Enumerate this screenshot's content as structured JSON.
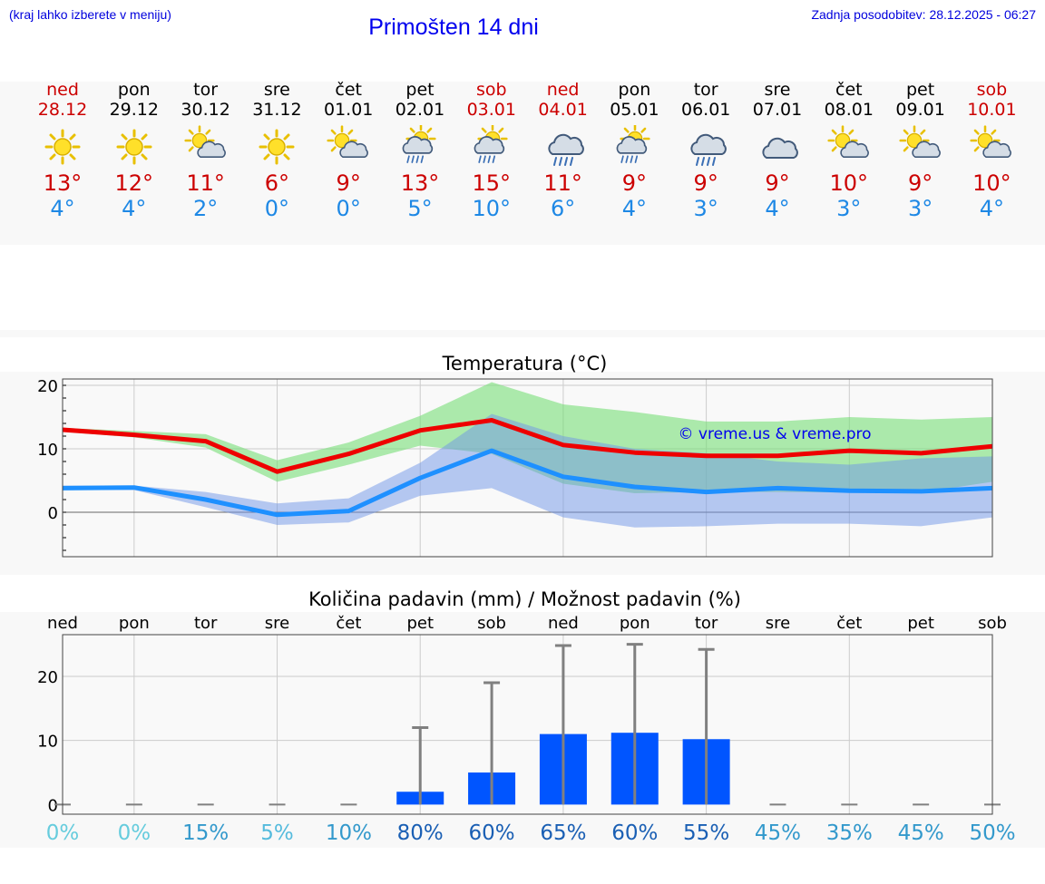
{
  "header": {
    "hint": "(kraj lahko izberete v meniju)",
    "title": "Primošten 14 dni",
    "updated": "Zadnja posodobitev: 28.12.2025 - 06:27"
  },
  "days": [
    {
      "name": "ned",
      "date": "28.12",
      "icon": "sun-icon",
      "high": "13°",
      "low": "4°",
      "weekend": true
    },
    {
      "name": "pon",
      "date": "29.12",
      "icon": "sun-icon",
      "high": "12°",
      "low": "4°",
      "weekend": false
    },
    {
      "name": "tor",
      "date": "30.12",
      "icon": "sun-cloud-icon",
      "high": "11°",
      "low": "2°",
      "weekend": false
    },
    {
      "name": "sre",
      "date": "31.12",
      "icon": "sun-icon",
      "high": "6°",
      "low": "0°",
      "weekend": false
    },
    {
      "name": "čet",
      "date": "01.01",
      "icon": "sun-cloud-icon",
      "high": "9°",
      "low": "0°",
      "weekend": false
    },
    {
      "name": "pet",
      "date": "02.01",
      "icon": "sun-cloud-rain-icon",
      "high": "13°",
      "low": "5°",
      "weekend": false
    },
    {
      "name": "sob",
      "date": "03.01",
      "icon": "sun-cloud-rain-icon",
      "high": "15°",
      "low": "10°",
      "weekend": true
    },
    {
      "name": "ned",
      "date": "04.01",
      "icon": "cloud-rain-icon",
      "high": "11°",
      "low": "6°",
      "weekend": true
    },
    {
      "name": "pon",
      "date": "05.01",
      "icon": "sun-cloud-rain-icon",
      "high": "9°",
      "low": "4°",
      "weekend": false
    },
    {
      "name": "tor",
      "date": "06.01",
      "icon": "cloud-rain-icon",
      "high": "9°",
      "low": "3°",
      "weekend": false
    },
    {
      "name": "sre",
      "date": "07.01",
      "icon": "cloud-icon",
      "high": "9°",
      "low": "4°",
      "weekend": false
    },
    {
      "name": "čet",
      "date": "08.01",
      "icon": "sun-cloud-icon",
      "high": "10°",
      "low": "3°",
      "weekend": false
    },
    {
      "name": "pet",
      "date": "09.01",
      "icon": "sun-cloud-icon",
      "high": "9°",
      "low": "3°",
      "weekend": false
    },
    {
      "name": "sob",
      "date": "10.01",
      "icon": "sun-cloud-icon",
      "high": "10°",
      "low": "4°",
      "weekend": true
    }
  ],
  "chart_data": [
    {
      "type": "line",
      "title": "Temperatura (°C)",
      "watermark": "© vreme.us & vreme.pro",
      "categories": [
        "ned",
        "pon",
        "tor",
        "sre",
        "čet",
        "pet",
        "sob",
        "ned",
        "pon",
        "tor",
        "sre",
        "čet",
        "pet",
        "sob"
      ],
      "ylim": [
        -7,
        21
      ],
      "yticks": [
        0,
        10,
        20
      ],
      "series": [
        {
          "name": "max",
          "color": "#ee0000",
          "values": [
            13,
            12.2,
            11.2,
            6.4,
            9.2,
            12.9,
            14.5,
            10.6,
            9.4,
            8.9,
            8.9,
            9.7,
            9.3,
            10.4
          ]
        },
        {
          "name": "min",
          "color": "#1e90ff",
          "values": [
            3.8,
            3.9,
            2,
            -0.4,
            0.2,
            5.4,
            9.7,
            5.6,
            4,
            3.2,
            3.8,
            3.4,
            3.3,
            3.8
          ]
        }
      ],
      "bands": [
        {
          "name": "max-range",
          "color": "#77dd77",
          "upper": [
            13.3,
            12.8,
            12.3,
            8.2,
            11,
            15.2,
            20.5,
            17,
            15.8,
            14.3,
            14.3,
            15,
            14.6,
            15
          ],
          "lower": [
            12.7,
            11.8,
            10.2,
            4.8,
            7.5,
            10.5,
            9.2,
            4.5,
            3,
            3.2,
            3.2,
            3.1,
            3.1,
            4.8
          ]
        },
        {
          "name": "min-range",
          "color": "#6f95e8",
          "upper": [
            4.2,
            4.2,
            3.2,
            1.4,
            2.2,
            7.8,
            15.5,
            12,
            10,
            9.3,
            8,
            7.5,
            8.5,
            8.8
          ]
        },
        {
          "name": "min-range-lower",
          "upper": [
            3.5,
            3.5,
            0.8,
            -2,
            -1.6,
            2.6,
            3.8,
            -0.8,
            -2.4,
            -2.2,
            -1.8,
            -1.8,
            -2.2,
            -0.8
          ]
        }
      ]
    },
    {
      "type": "bar",
      "title": "Količina padavin (mm) / Možnost padavin (%)",
      "categories": [
        "ned",
        "pon",
        "tor",
        "sre",
        "čet",
        "pet",
        "sob",
        "ned",
        "pon",
        "tor",
        "sre",
        "čet",
        "pet",
        "sob"
      ],
      "ylim": [
        -1.5,
        26.5
      ],
      "yticks": [
        0,
        10,
        20
      ],
      "values": [
        0,
        0,
        0,
        0,
        0,
        2,
        5,
        11,
        11.2,
        10.2,
        0,
        0,
        0,
        0
      ],
      "error_max": [
        0,
        0,
        0,
        0,
        0,
        12,
        19,
        24.8,
        25,
        24.2,
        0,
        0,
        0,
        0
      ],
      "probability": [
        "0%",
        "0%",
        "15%",
        "5%",
        "10%",
        "80%",
        "60%",
        "65%",
        "60%",
        "55%",
        "45%",
        "35%",
        "45%",
        "50%"
      ],
      "probability_colors": [
        "#66ccdd",
        "#66ccdd",
        "#3399cc",
        "#55bbdd",
        "#3399cc",
        "#1a5fb4",
        "#1a5fb4",
        "#1a5fb4",
        "#1a5fb4",
        "#1a5fb4",
        "#3399cc",
        "#3399cc",
        "#3399cc",
        "#3399cc"
      ],
      "bar_color": "#0055ff",
      "error_color": "#808080"
    }
  ]
}
